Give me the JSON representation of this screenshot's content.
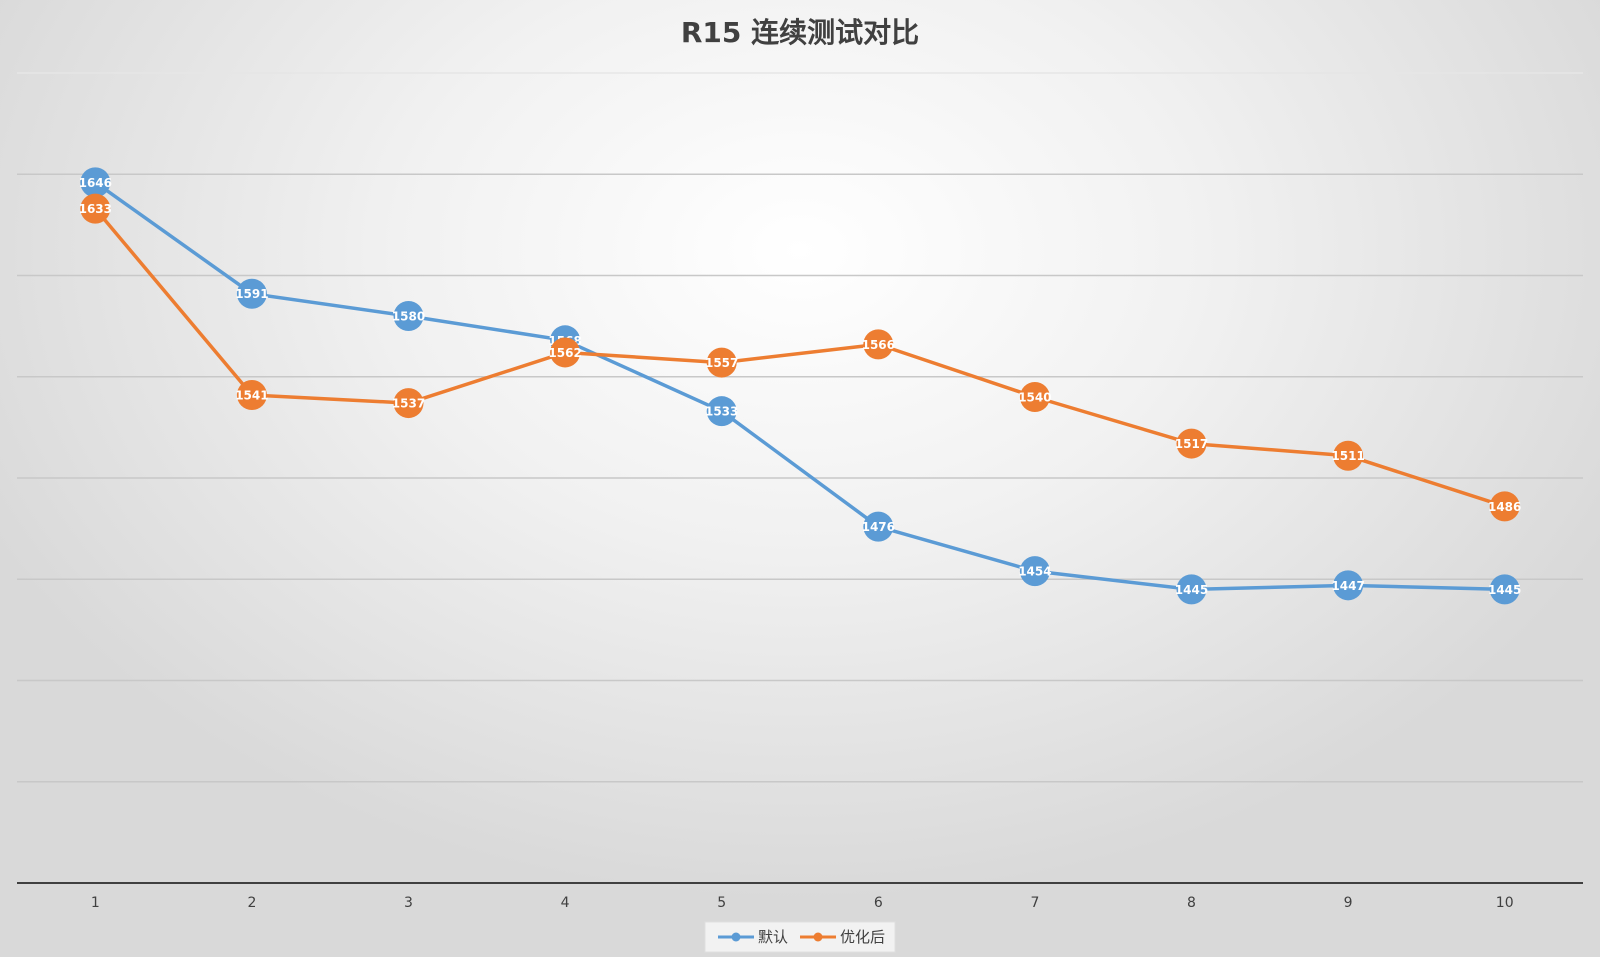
{
  "chart_data": {
    "type": "line",
    "title": "R15 连续测试对比",
    "xlabel": "",
    "ylabel": "",
    "x": [
      "1",
      "2",
      "3",
      "4",
      "5",
      "6",
      "7",
      "8",
      "9",
      "10"
    ],
    "ylim": [
      1300,
      1700
    ],
    "ytick_step": 50,
    "y_tick_labels_shown": false,
    "grid": true,
    "legend_position": "bottom",
    "series": [
      {
        "name": "默认",
        "color": "#5B9BD5",
        "values": [
          1646,
          1591,
          1580,
          1568,
          1533,
          1476,
          1454,
          1445,
          1447,
          1445
        ]
      },
      {
        "name": "优化后",
        "color": "#ED7D31",
        "values": [
          1633,
          1541,
          1537,
          1562,
          1557,
          1566,
          1540,
          1517,
          1511,
          1486
        ]
      }
    ],
    "data_labels": true
  }
}
